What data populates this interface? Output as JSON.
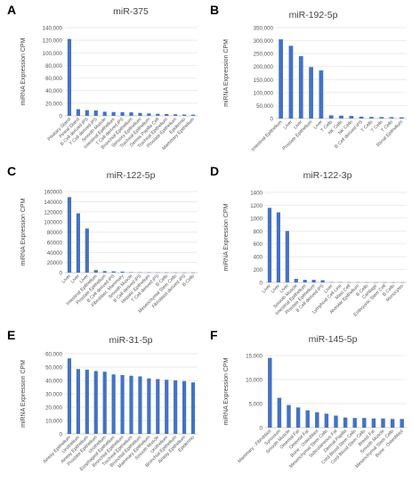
{
  "panel_color": "#4472C4",
  "chart_data": [
    {
      "type": "bar",
      "panel": "A",
      "title": "miR-375",
      "ylabel": "miRNA Expression CPM",
      "ylim": [
        0,
        140000
      ],
      "yticks": [
        "0",
        "20,000",
        "40,000",
        "60,000",
        "80,000",
        "100,000",
        "120,000",
        "140,000"
      ],
      "categories": [
        "Pituitary Gland",
        "Pineal Gland",
        "B Cell derived iPS",
        "T Cell derived iPS",
        "Smooth Muscle",
        "Intestinal Epithelium",
        "T Cell derived iPS",
        "Bronchial Epithelium",
        "Sensory Epithelium",
        "Tracheal Epithelium",
        "Dermis Papilla Cell",
        "Tracheal Epithelium",
        "Prostate Epithelium",
        "Epidermis",
        "Mammary Epithelium"
      ],
      "values": [
        122000,
        10500,
        9000,
        8500,
        6500,
        6000,
        5800,
        5500,
        4500,
        3800,
        3200,
        2800,
        2400,
        2000,
        1800
      ]
    },
    {
      "type": "bar",
      "panel": "B",
      "title": "miR-192-5p",
      "ylabel": "miRNA Expression CPM",
      "ylim": [
        0,
        350000
      ],
      "yticks": [
        "0",
        "50,000",
        "100,000",
        "150,000",
        "200,000",
        "250,000",
        "300,000",
        "350,000"
      ],
      "categories": [
        "Intestinal Epithelium",
        "Liver",
        "Liver",
        "Prostate Epithelium",
        "Liver",
        "T Cells",
        "NK Cells",
        "NK Cells",
        "B Cell derived iPS",
        "T Cells",
        "T Cells",
        "T Cells",
        "Renal Epithelium"
      ],
      "values": [
        305000,
        280000,
        240000,
        198000,
        185000,
        12000,
        11000,
        10000,
        7000,
        6000,
        5500,
        5000,
        4500
      ]
    },
    {
      "type": "bar",
      "panel": "C",
      "title": "miR-122-5p",
      "ylabel": "miRNA Expression CPM",
      "ylim": [
        0,
        160000
      ],
      "yticks": [
        "0",
        "20000",
        "40000",
        "60000",
        "80000",
        "100000",
        "120000",
        "140000",
        "160000"
      ],
      "categories": [
        "Liver",
        "Liver",
        "Liver",
        "Intestinal Epithelium",
        "Prostate Epithelium",
        "B Cell derived iPS",
        "Fibroblast, Mammary",
        "Smooth Muscle",
        "B Cell derived iPS",
        "Hepatic Epithelium",
        "T Cell derived iPS",
        "B Cells",
        "Mesenchymal Stem Cells",
        "Fibroblast derived iPS",
        "B Cells"
      ],
      "values": [
        149000,
        117000,
        87000,
        5000,
        3000,
        2500,
        2000,
        800,
        600,
        500,
        400,
        300,
        300,
        200,
        200
      ]
    },
    {
      "type": "bar",
      "panel": "D",
      "title": "miR-122-3p",
      "ylabel": "miRNA Expression CPM",
      "ylim": [
        0,
        1400
      ],
      "yticks": [
        "0",
        "200",
        "400",
        "600",
        "800",
        "1000",
        "1200",
        "1400"
      ],
      "categories": [
        "Liver",
        "Liver",
        "Liver",
        "Smooth Muscle",
        "Intestinal Epithelium",
        "Prostate Epithelium",
        "B Cell derived iPS",
        "Liver",
        "Lymphoid Cell Line",
        "Mast Cell",
        "Alveolar Epithelium",
        "B Cells",
        "Cartilage",
        "Embryonic Stem Cell",
        "B Cells",
        "Monocytes"
      ],
      "values": [
        1160,
        1090,
        800,
        55,
        40,
        40,
        35,
        5,
        4,
        3,
        3,
        3,
        2,
        2,
        2,
        2
      ]
    },
    {
      "type": "bar",
      "panel": "E",
      "title": "miR-31-5p",
      "ylabel": "miRNA Expression CPM",
      "ylim": [
        0,
        60000
      ],
      "yticks": [
        "0",
        "10,000",
        "20,000",
        "30,000",
        "40,000",
        "50,000",
        "60,000"
      ],
      "categories": [
        "Airway Epithelium",
        "Urothelium",
        "Airway Epithelium",
        "Prostate Epithelium",
        "Urothelium",
        "Esophageal Epithelium",
        "Bronchial Epithelium",
        "Tracheal Epithelium",
        "Bronchial Epithelium",
        "Mammary Epithelium",
        "Smooth Muscle",
        "Urothelium",
        "Bronchial Epithelium",
        "Airway Epithelium",
        "Epidermis"
      ],
      "values": [
        56500,
        48500,
        48000,
        47000,
        46500,
        44500,
        44000,
        43500,
        43000,
        41500,
        41000,
        40500,
        40000,
        39500,
        38500
      ]
    },
    {
      "type": "bar",
      "panel": "F",
      "title": "miR-145-5p",
      "ylabel": "miRNA Expression CPM",
      "ylim": [
        0,
        15000
      ],
      "yticks": [
        "0",
        "5,000",
        "10,000",
        "15,000"
      ],
      "categories": [
        "Mammary - Fibroblast",
        "Synovium",
        "Smooth Muscle",
        "Omental Fat",
        "Omental Fat",
        "Bone - Osteoblast",
        "Mesenchymal Stem Cells",
        "Subcutaneous Fat",
        "Dermal Papilla",
        "Cord Blood Stem Cells",
        "Cord Blood Stem Cells",
        "Breast Fat",
        "Smooth Muscle",
        "Mesenchymal Stem Cells",
        "Bone - Osteoblast"
      ],
      "values": [
        14500,
        6200,
        4700,
        4200,
        3600,
        3200,
        2900,
        2500,
        2100,
        2000,
        2000,
        1900,
        1900,
        1800,
        1800
      ]
    }
  ]
}
